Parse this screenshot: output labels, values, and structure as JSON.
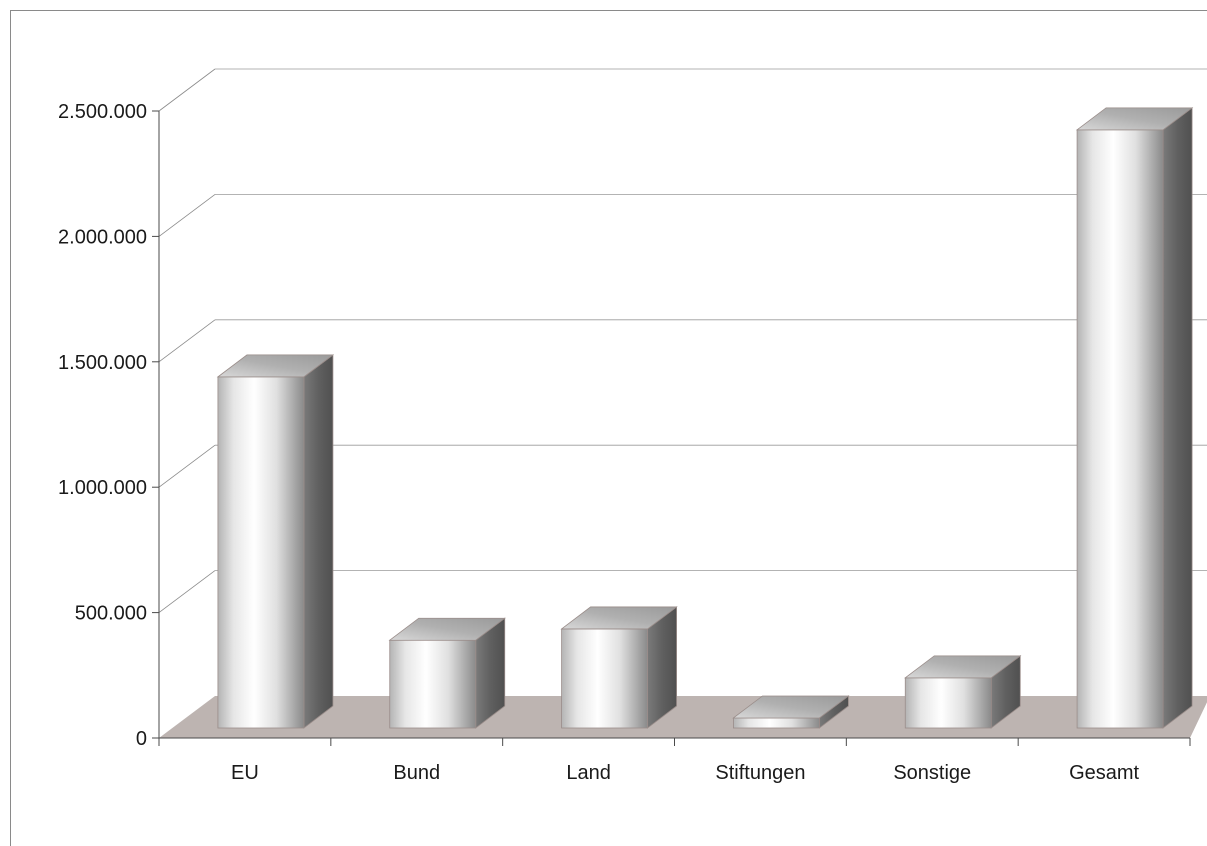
{
  "chart_data": {
    "type": "bar",
    "categories": [
      "EU",
      "Bund",
      "Land",
      "Stiftungen",
      "Sonstige",
      "Gesamt"
    ],
    "values": [
      1400000,
      350000,
      395000,
      40000,
      200000,
      2385000
    ],
    "yticks": [
      "0",
      "500.000",
      "1.000.000",
      "1.500.000",
      "2.000.000",
      "2.500.000"
    ],
    "ytick_values": [
      0,
      500000,
      1000000,
      1500000,
      2000000,
      2500000
    ],
    "ylim": [
      0,
      2500000
    ],
    "title": "",
    "xlabel": "",
    "ylabel": "",
    "grid": true,
    "three_d": true
  }
}
